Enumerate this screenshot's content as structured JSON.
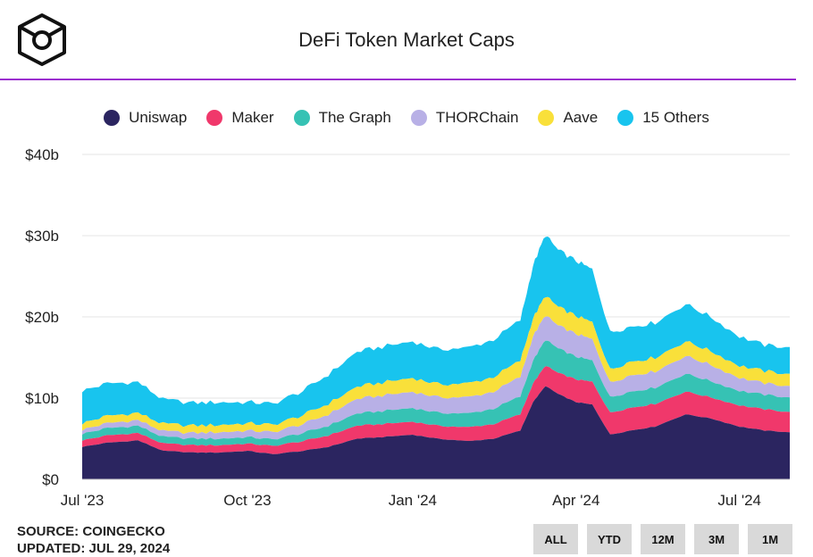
{
  "title": "DeFi Token Market Caps",
  "source": "SOURCE: COINGECKO",
  "updated": "UPDATED: JUL 29, 2024",
  "range_buttons": [
    "ALL",
    "YTD",
    "12M",
    "3M",
    "1M"
  ],
  "chart_data": {
    "type": "area",
    "stacked": true,
    "title": "DeFi Token Market Caps",
    "ylabel": "",
    "xlabel": "",
    "ylim": [
      0,
      40
    ],
    "y_ticks": [
      "$0",
      "$10b",
      "$20b",
      "$30b",
      "$40b"
    ],
    "y_tick_values": [
      0,
      10,
      20,
      30,
      40
    ],
    "x_tick_labels": [
      "Jul '23",
      "Oct '23",
      "Jan '24",
      "Apr '24",
      "Jul '24"
    ],
    "x_tick_dates": [
      "2023-07-01",
      "2023-10-01",
      "2024-01-01",
      "2024-04-01",
      "2024-07-01"
    ],
    "grid": true,
    "legend_position": "top",
    "x": [
      "2023-07-01",
      "2023-07-15",
      "2023-08-01",
      "2023-08-15",
      "2023-09-01",
      "2023-09-15",
      "2023-10-01",
      "2023-10-15",
      "2023-11-01",
      "2023-11-15",
      "2023-12-01",
      "2023-12-15",
      "2024-01-01",
      "2024-01-15",
      "2024-02-01",
      "2024-02-15",
      "2024-03-01",
      "2024-03-08",
      "2024-03-15",
      "2024-03-22",
      "2024-04-01",
      "2024-04-10",
      "2024-04-20",
      "2024-05-01",
      "2024-05-15",
      "2024-06-01",
      "2024-06-15",
      "2024-07-01",
      "2024-07-15",
      "2024-07-29"
    ],
    "series": [
      {
        "name": "Uniswap",
        "color": "#2b2560",
        "values": [
          4.0,
          4.5,
          4.8,
          3.5,
          3.3,
          3.3,
          3.5,
          3.1,
          3.5,
          4.0,
          5.0,
          5.2,
          5.5,
          5.0,
          4.7,
          5.0,
          6.0,
          9.5,
          11.5,
          10.5,
          9.5,
          9.2,
          5.5,
          6.0,
          6.5,
          8.0,
          7.5,
          6.5,
          6.0,
          5.8
        ]
      },
      {
        "name": "Maker",
        "color": "#f0386b",
        "values": [
          0.8,
          0.9,
          0.9,
          0.9,
          0.9,
          0.9,
          0.9,
          1.0,
          1.2,
          1.4,
          1.6,
          1.6,
          1.6,
          1.6,
          1.7,
          1.8,
          2.0,
          2.3,
          2.5,
          2.6,
          2.8,
          2.8,
          2.7,
          2.8,
          2.8,
          2.8,
          2.6,
          2.6,
          2.6,
          2.5
        ]
      },
      {
        "name": "The Graph",
        "color": "#36c2b4",
        "values": [
          0.8,
          0.9,
          0.9,
          0.8,
          0.8,
          0.8,
          0.8,
          0.8,
          1.0,
          1.2,
          1.5,
          1.6,
          1.7,
          1.6,
          1.7,
          1.9,
          2.2,
          2.8,
          3.2,
          3.0,
          2.8,
          2.6,
          1.9,
          2.0,
          2.0,
          2.2,
          2.0,
          1.8,
          1.8,
          1.8
        ]
      },
      {
        "name": "THORChain",
        "color": "#b8b0e6",
        "values": [
          0.5,
          0.6,
          0.7,
          0.7,
          0.7,
          0.8,
          0.8,
          0.9,
          1.1,
          1.4,
          1.8,
          1.9,
          2.0,
          1.9,
          2.0,
          2.1,
          2.4,
          3.0,
          3.0,
          2.8,
          2.8,
          2.6,
          1.8,
          2.0,
          2.0,
          2.2,
          2.0,
          1.6,
          1.4,
          1.4
        ]
      },
      {
        "name": "Aave",
        "color": "#f9e03a",
        "values": [
          0.8,
          0.9,
          0.9,
          0.9,
          0.9,
          0.9,
          0.9,
          0.9,
          1.1,
          1.3,
          1.5,
          1.6,
          1.7,
          1.6,
          1.7,
          1.8,
          2.0,
          2.2,
          2.4,
          2.3,
          2.2,
          2.1,
          1.6,
          1.7,
          1.7,
          1.8,
          1.7,
          1.5,
          1.5,
          1.5
        ]
      },
      {
        "name": "15 Others",
        "color": "#18c4ee",
        "values": [
          4.0,
          4.0,
          3.8,
          3.0,
          2.8,
          2.8,
          2.6,
          2.6,
          3.0,
          3.6,
          4.3,
          4.4,
          4.5,
          4.3,
          4.4,
          4.6,
          5.0,
          6.5,
          7.5,
          7.0,
          6.8,
          6.5,
          4.6,
          4.3,
          4.3,
          4.6,
          4.2,
          3.6,
          3.2,
          3.3
        ]
      }
    ]
  }
}
